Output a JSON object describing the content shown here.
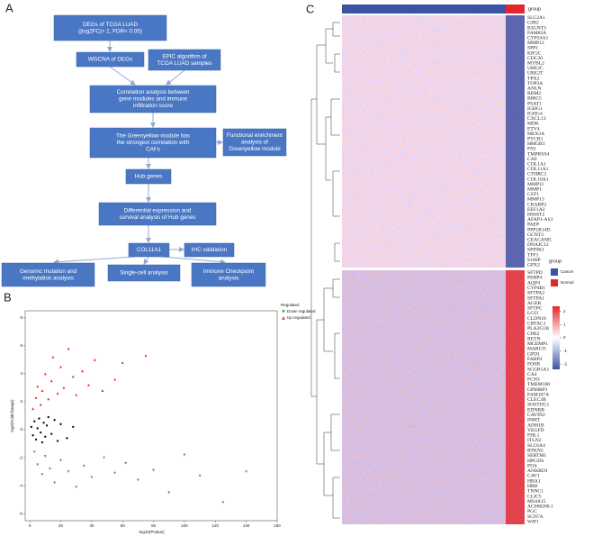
{
  "panel_labels": [
    "A",
    "B",
    "C"
  ],
  "flowchart": {
    "nodes": [
      {
        "lines": [
          "DEGs of TCGA LUAD",
          "(|log2FC|> 1, FDR< 0.05)"
        ]
      },
      {
        "lines": [
          "WGCNA of DEGs"
        ]
      },
      {
        "lines": [
          "EPIC algorithm of",
          "TCGA LUAD samples"
        ]
      },
      {
        "lines": [
          "Correlation analysis between",
          "gene modules and immune",
          "infiltration score"
        ]
      },
      {
        "lines": [
          "The Greenyellow module has",
          "the strongest correlation with",
          "CAFs"
        ]
      },
      {
        "lines": [
          "Functional enrichment",
          "analysis of",
          "Greenyellow module"
        ]
      },
      {
        "lines": [
          "Hub genes"
        ]
      },
      {
        "lines": [
          "Differential expression and",
          "survival analysis of Hub genes"
        ]
      },
      {
        "lines": [
          "COL11A1"
        ]
      },
      {
        "lines": [
          "IHC validation"
        ]
      },
      {
        "lines": [
          "Genomic mutation and",
          "methylation analysis"
        ]
      },
      {
        "lines": [
          "Single-cell analysis"
        ]
      },
      {
        "lines": [
          "Immune Checkpoint",
          "analysis"
        ]
      }
    ]
  },
  "chart_data": {
    "type": "scatter",
    "x_label": "-log10(Pvalue)",
    "y_label": "log2(FoldChange)",
    "legend_title": "Regulated",
    "xlim": [
      -3,
      160
    ],
    "xticks": [
      0,
      20,
      40,
      60,
      80,
      100,
      120,
      140,
      160
    ],
    "ylim": [
      -6.5,
      8.5
    ],
    "yticks": [
      -6,
      -4,
      -2,
      0,
      2,
      4,
      6,
      8
    ],
    "series": [
      {
        "name": "Down regulated",
        "color": "#3f9f4a",
        "marker": "triangle-down",
        "x": [
          3,
          5,
          8,
          10,
          13,
          16,
          20,
          25,
          30,
          35,
          40,
          48,
          55,
          62,
          70,
          80,
          90,
          100,
          110,
          125,
          140
        ],
        "values": [
          -1.6,
          -2.5,
          -3.2,
          -1.9,
          -2.8,
          -3.8,
          -2.2,
          -3.0,
          -4.1,
          -2.6,
          -3.4,
          -2.0,
          -3.1,
          -2.4,
          -3.6,
          -2.9,
          -4.5,
          -1.8,
          -3.3,
          -5.2,
          -3.0
        ]
      },
      {
        "name": "Up regulated",
        "color": "#e8262b",
        "marker": "triangle-up",
        "x": [
          2,
          4,
          5,
          7,
          8,
          10,
          12,
          14,
          15,
          18,
          20,
          22,
          25,
          28,
          30,
          34,
          38,
          42,
          47,
          55,
          60,
          75
        ],
        "values": [
          1.5,
          2.3,
          3.1,
          1.8,
          2.8,
          4.0,
          2.2,
          3.5,
          5.2,
          2.6,
          4.5,
          3.0,
          5.8,
          3.8,
          2.5,
          4.2,
          3.2,
          5.0,
          2.8,
          3.6,
          4.8,
          5.3
        ]
      },
      {
        "color": "#111111",
        "x": [
          1,
          2,
          3,
          4,
          5,
          6,
          7,
          8,
          9,
          10,
          11,
          12,
          14,
          16,
          18,
          20,
          24,
          28
        ],
        "values": [
          0.2,
          -0.4,
          0.6,
          -0.7,
          0.1,
          0.8,
          -0.2,
          -0.9,
          0.5,
          -0.5,
          0.3,
          0.9,
          -0.3,
          0.7,
          -0.8,
          0.4,
          -0.6,
          0.2
        ]
      }
    ]
  },
  "heatmap": {
    "group_label": "group",
    "legend_title": "group",
    "legend": [
      {
        "name": "Cancer",
        "color": "#3a53a4"
      },
      {
        "name": "Normal",
        "color": "#e3262b"
      }
    ],
    "scale_lim": [
      -2.4,
      2.4
    ],
    "scale_ticks": [
      2,
      1,
      0,
      -1,
      -2
    ],
    "genes_up": [
      "SLC2A1",
      "GJB2",
      "B3GNT3",
      "FAM83A",
      "CYP24A1",
      "MMP12",
      "SPP1",
      "KIF2C",
      "CDC20",
      "MYBL2",
      "UBE2C",
      "UBE2T",
      "TPX2",
      "TOP2A",
      "ANLN",
      "RRM2",
      "BIRC5",
      "PSAT1",
      "IGHG1",
      "IGHG4",
      "CXCL13",
      "MDK",
      "ETV4",
      "MEX3A",
      "PYCR1",
      "HMGB3",
      "FN1",
      "TMPRSS4",
      "CA9",
      "COL1A1",
      "COL11A1",
      "CTHRC1",
      "COL10A1",
      "MMP11",
      "MMP1",
      "CST1",
      "MMP13",
      "CRABP2",
      "EEF1A2",
      "HS6ST2",
      "AFAP1-AS1",
      "PAEP",
      "PPP1R14D",
      "GCNT3",
      "CEACAM5",
      "DNAJC12",
      "SPINK1",
      "TFF1",
      "S100P",
      "GPX2"
    ],
    "genes_down": [
      "SFTPD",
      "PEBP4",
      "AQP4",
      "CYP4B1",
      "SFTPA2",
      "SFTPA1",
      "AGER",
      "SFTPC",
      "LGI3",
      "CLDN18",
      "CRTAC1",
      "PLA2G1B",
      "CPB2",
      "RETN",
      "MCEMP1",
      "MARCO",
      "GPD1",
      "FABP4",
      "FOSB",
      "SCGB1A1",
      "CA4",
      "FCN3",
      "TMEM100",
      "GPIHBP1",
      "FAM107A",
      "CLEC3B",
      "SOSTDC1",
      "EDNRB",
      "CAVIN2",
      "INMT",
      "ADH1B",
      "VEGFD",
      "FHL1",
      "ITLN2",
      "SLC6A4",
      "RTKN2",
      "SERTM1",
      "HPGDS",
      "PI16",
      "ANKRD1",
      "CAV1",
      "HBA1",
      "HBB",
      "TNNC1",
      "CLIC5",
      "MS4A15",
      "AC008268.1",
      "PGC",
      "SCN7A",
      "WIF1"
    ]
  }
}
